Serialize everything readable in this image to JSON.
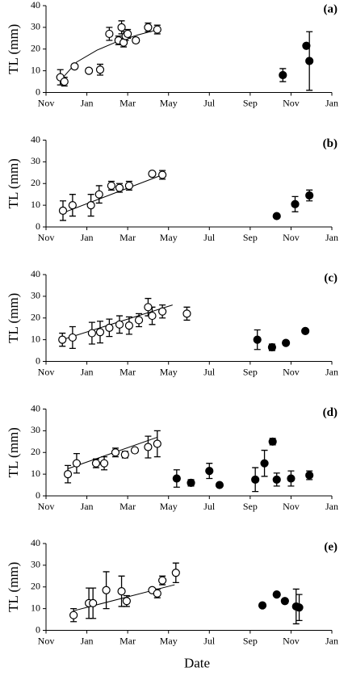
{
  "chart_data": [
    {
      "type": "scatter",
      "panel_label": "(a)",
      "ylabel": "TL (mm)",
      "xlim": [
        0,
        14
      ],
      "xticks": [
        {
          "value": 0,
          "label": "Nov"
        },
        {
          "value": 2,
          "label": "Jan"
        },
        {
          "value": 4,
          "label": "Mar"
        },
        {
          "value": 6,
          "label": "May"
        },
        {
          "value": 8,
          "label": "Jul"
        },
        {
          "value": 10,
          "label": "Sep"
        },
        {
          "value": 12,
          "label": "Nov"
        },
        {
          "value": 14,
          "label": "Jan"
        }
      ],
      "ylim": [
        0,
        40
      ],
      "yticks": [
        0,
        10,
        20,
        30,
        40
      ],
      "series": [
        {
          "color": "#ffffff",
          "x": [
            0.7,
            0.9,
            1.4,
            2.1,
            2.65,
            3.1,
            3.55,
            3.7,
            3.8,
            3.9,
            4.0,
            4.4,
            5.0,
            5.45
          ],
          "values": [
            7,
            5,
            12,
            10,
            10.5,
            27,
            24,
            30,
            23,
            26,
            27,
            24,
            30,
            29
          ],
          "errors": [
            3.5,
            2,
            1,
            1,
            2.5,
            3,
            2,
            3,
            2,
            2,
            2,
            1,
            2,
            2
          ]
        },
        {
          "color": "#000000",
          "x": [
            11.6,
            12.75,
            12.9
          ],
          "values": [
            8,
            21.5,
            14.5
          ],
          "errors": [
            3,
            1,
            13.5
          ]
        }
      ],
      "fit": {
        "x": [
          0.7,
          1.5,
          2.5,
          3.5,
          4.5,
          5.5
        ],
        "values": [
          5.5,
          14,
          19.5,
          23.5,
          26.5,
          29
        ]
      }
    },
    {
      "type": "scatter",
      "panel_label": "(b)",
      "ylabel": "TL (mm)",
      "xlim": [
        0,
        14
      ],
      "xticks": [
        {
          "value": 0,
          "label": "Nov"
        },
        {
          "value": 2,
          "label": "Jan"
        },
        {
          "value": 4,
          "label": "Mar"
        },
        {
          "value": 6,
          "label": "May"
        },
        {
          "value": 8,
          "label": "Jul"
        },
        {
          "value": 10,
          "label": "Sep"
        },
        {
          "value": 12,
          "label": "Nov"
        },
        {
          "value": 14,
          "label": "Jan"
        }
      ],
      "ylim": [
        0,
        40
      ],
      "yticks": [
        0,
        10,
        20,
        30,
        40
      ],
      "series": [
        {
          "color": "#ffffff",
          "x": [
            0.83,
            1.3,
            2.2,
            2.6,
            3.2,
            3.6,
            4.07,
            5.2,
            5.7
          ],
          "values": [
            7.5,
            10,
            10,
            15,
            19,
            18,
            19,
            24.5,
            24
          ],
          "errors": [
            4.5,
            5,
            5,
            4,
            2,
            2,
            2,
            1,
            2
          ]
        },
        {
          "color": "#000000",
          "x": [
            11.3,
            12.2,
            12.9
          ],
          "values": [
            5,
            10.5,
            14.5
          ],
          "errors": [
            0.5,
            3.5,
            2.5
          ]
        }
      ],
      "fit": {
        "x": [
          0.83,
          5.7
        ],
        "values": [
          6.5,
          24
        ]
      }
    },
    {
      "type": "scatter",
      "panel_label": "(c)",
      "ylabel": "TL (mm)",
      "xlim": [
        0,
        14
      ],
      "xticks": [
        {
          "value": 0,
          "label": "Nov"
        },
        {
          "value": 2,
          "label": "Jan"
        },
        {
          "value": 4,
          "label": "Mar"
        },
        {
          "value": 6,
          "label": "May"
        },
        {
          "value": 8,
          "label": "Jul"
        },
        {
          "value": 10,
          "label": "Sep"
        },
        {
          "value": 12,
          "label": "Nov"
        },
        {
          "value": 14,
          "label": "Jan"
        }
      ],
      "ylim": [
        0,
        40
      ],
      "yticks": [
        0,
        10,
        20,
        30,
        40
      ],
      "series": [
        {
          "color": "#ffffff",
          "x": [
            0.8,
            1.3,
            2.25,
            2.65,
            3.1,
            3.6,
            4.07,
            4.55,
            5.0,
            5.2,
            5.7,
            6.9
          ],
          "values": [
            10,
            11,
            13,
            13.5,
            15.5,
            17,
            16.5,
            19,
            25,
            21,
            23,
            22
          ],
          "errors": [
            3,
            5,
            5,
            5,
            4,
            4,
            4,
            3,
            4,
            4,
            3,
            3
          ]
        },
        {
          "color": "#000000",
          "x": [
            10.35,
            11.07,
            11.75,
            12.7
          ],
          "values": [
            10,
            6.5,
            8.5,
            14
          ],
          "errors": [
            4.5,
            1.5,
            1,
            0.5
          ]
        }
      ],
      "fit": {
        "x": [
          0.8,
          6.2
        ],
        "values": [
          10,
          26
        ]
      }
    },
    {
      "type": "scatter",
      "panel_label": "(d)",
      "ylabel": "TL (mm)",
      "xlim": [
        0,
        14
      ],
      "xticks": [
        {
          "value": 0,
          "label": "Nov"
        },
        {
          "value": 2,
          "label": "Jan"
        },
        {
          "value": 4,
          "label": "Mar"
        },
        {
          "value": 6,
          "label": "May"
        },
        {
          "value": 8,
          "label": "Jul"
        },
        {
          "value": 10,
          "label": "Sep"
        },
        {
          "value": 12,
          "label": "Nov"
        },
        {
          "value": 14,
          "label": "Jan"
        }
      ],
      "ylim": [
        0,
        40
      ],
      "yticks": [
        0,
        10,
        20,
        30,
        40
      ],
      "series": [
        {
          "color": "#ffffff",
          "x": [
            1.07,
            1.5,
            2.45,
            2.85,
            3.4,
            3.87,
            4.35,
            5.0,
            5.45
          ],
          "values": [
            10,
            15,
            15,
            15,
            20,
            19,
            21,
            22.5,
            24
          ],
          "errors": [
            4,
            4.5,
            2,
            3,
            2,
            1.5,
            1,
            5,
            6
          ]
        },
        {
          "color": "#000000",
          "x": [
            6.4,
            7.1,
            8.0,
            8.5,
            10.25,
            10.7,
            11.1,
            11.3,
            12.0,
            12.9
          ],
          "values": [
            8,
            6,
            11.5,
            5,
            7.5,
            15,
            25,
            7.5,
            8,
            9.5
          ],
          "errors": [
            4,
            1.5,
            3.5,
            0.5,
            5.5,
            6,
            1.5,
            3,
            3.5,
            2
          ]
        }
      ],
      "fit": {
        "x": [
          1.07,
          5.45
        ],
        "values": [
          12.5,
          27
        ]
      }
    },
    {
      "type": "scatter",
      "panel_label": "(e)",
      "ylabel": "TL (mm)",
      "xlabel": "Date",
      "xlim": [
        0,
        14
      ],
      "xticks": [
        {
          "value": 0,
          "label": "Nov"
        },
        {
          "value": 2,
          "label": "Jan"
        },
        {
          "value": 4,
          "label": "Mar"
        },
        {
          "value": 6,
          "label": "May"
        },
        {
          "value": 8,
          "label": "Jul"
        },
        {
          "value": 10,
          "label": "Sep"
        },
        {
          "value": 12,
          "label": "Nov"
        },
        {
          "value": 14,
          "label": "Jan"
        }
      ],
      "ylim": [
        0,
        40
      ],
      "yticks": [
        0,
        10,
        20,
        30,
        40
      ],
      "series": [
        {
          "color": "#ffffff",
          "x": [
            1.35,
            2.1,
            2.3,
            2.95,
            3.7,
            3.95,
            5.2,
            5.45,
            5.7,
            6.36
          ],
          "values": [
            7,
            12.5,
            12.5,
            18.5,
            18,
            13.5,
            18.5,
            17,
            23,
            26.5
          ],
          "errors": [
            3,
            7,
            7,
            8.5,
            7,
            2.5,
            1,
            2,
            2,
            4.5
          ]
        },
        {
          "color": "#000000",
          "x": [
            10.6,
            11.3,
            11.7,
            12.25,
            12.4
          ],
          "values": [
            11.5,
            16.5,
            13.5,
            11,
            10.5
          ],
          "errors": [
            0.5,
            0.5,
            1,
            8,
            6
          ]
        }
      ],
      "fit": {
        "x": [
          1.35,
          6.3
        ],
        "values": [
          9,
          21
        ]
      }
    }
  ]
}
